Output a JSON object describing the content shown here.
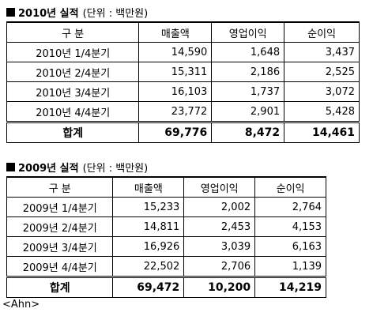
{
  "section2010": {
    "title_year": "2010년 실적",
    "title_unit": "(단위 : 백만원)",
    "headers": [
      "구    분",
      "매출액",
      "영업이익",
      "순이익"
    ],
    "rows": [
      [
        "2010년 1/4분기",
        "14,590",
        "1,648",
        "3,437"
      ],
      [
        "2010년 2/4분기",
        "15,311",
        "2,186",
        "2,525"
      ],
      [
        "2010년 3/4분기",
        "16,103",
        "1,737",
        "3,072"
      ],
      [
        "2010년 4/4분기",
        "23,772",
        "2,901",
        "5,428"
      ]
    ],
    "total": [
      "합계",
      "69,776",
      "8,472",
      "14,461"
    ]
  },
  "section2009": {
    "title_year": "2009년 실적",
    "title_unit": "(단위 : 백만원)",
    "headers": [
      "구    분",
      "매출액",
      "영업이익",
      "순이익"
    ],
    "rows": [
      [
        "2009년 1/4분기",
        "15,233",
        "2,002",
        "2,764"
      ],
      [
        "2009년 2/4분기",
        "14,811",
        "2,453",
        "4,153"
      ],
      [
        "2009년 3/4분기",
        "16,926",
        "3,039",
        "6,163"
      ],
      [
        "2009년 4/4분기",
        "22,502",
        "2,706",
        "1,139"
      ]
    ],
    "total": [
      "합계",
      "69,472",
      "10,200",
      "14,219"
    ]
  },
  "author": "<Ahn>"
}
